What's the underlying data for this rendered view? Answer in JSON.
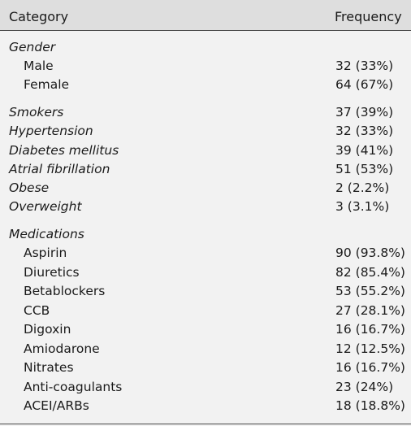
{
  "header": {
    "category": "Category",
    "frequency": "Frequency"
  },
  "rows": [
    {
      "label": "Gender",
      "value": "",
      "kind": "section"
    },
    {
      "label": "Male",
      "value": "32 (33%)",
      "kind": "sub"
    },
    {
      "label": "Female",
      "value": "64 (67%)",
      "kind": "sub"
    },
    {
      "label": "Smokers",
      "value": "37 (39%)",
      "kind": "section"
    },
    {
      "label": "Hypertension",
      "value": "32 (33%)",
      "kind": "section"
    },
    {
      "label": "Diabetes mellitus",
      "value": "39 (41%)",
      "kind": "section"
    },
    {
      "label": "Atrial fibrillation",
      "value": "51 (53%)",
      "kind": "section"
    },
    {
      "label": "Obese",
      "value": "2 (2.2%)",
      "kind": "section"
    },
    {
      "label": "Overweight",
      "value": "3 (3.1%)",
      "kind": "section"
    },
    {
      "label": "Medications",
      "value": "",
      "kind": "section"
    },
    {
      "label": "Aspirin",
      "value": "90 (93.8%)",
      "kind": "sub"
    },
    {
      "label": "Diuretics",
      "value": "82 (85.4%)",
      "kind": "sub"
    },
    {
      "label": "Betablockers",
      "value": "53 (55.2%)",
      "kind": "sub"
    },
    {
      "label": "CCB",
      "value": "27 (28.1%)",
      "kind": "sub"
    },
    {
      "label": "Digoxin",
      "value": "16 (16.7%)",
      "kind": "sub"
    },
    {
      "label": "Amiodarone",
      "value": "12 (12.5%)",
      "kind": "sub"
    },
    {
      "label": "Nitrates",
      "value": "16 (16.7%)",
      "kind": "sub"
    },
    {
      "label": "Anti-coagulants",
      "value": "23 (24%)",
      "kind": "sub"
    },
    {
      "label": "ACEI/ARBs",
      "value": "18 (18.8%)",
      "kind": "sub"
    }
  ]
}
